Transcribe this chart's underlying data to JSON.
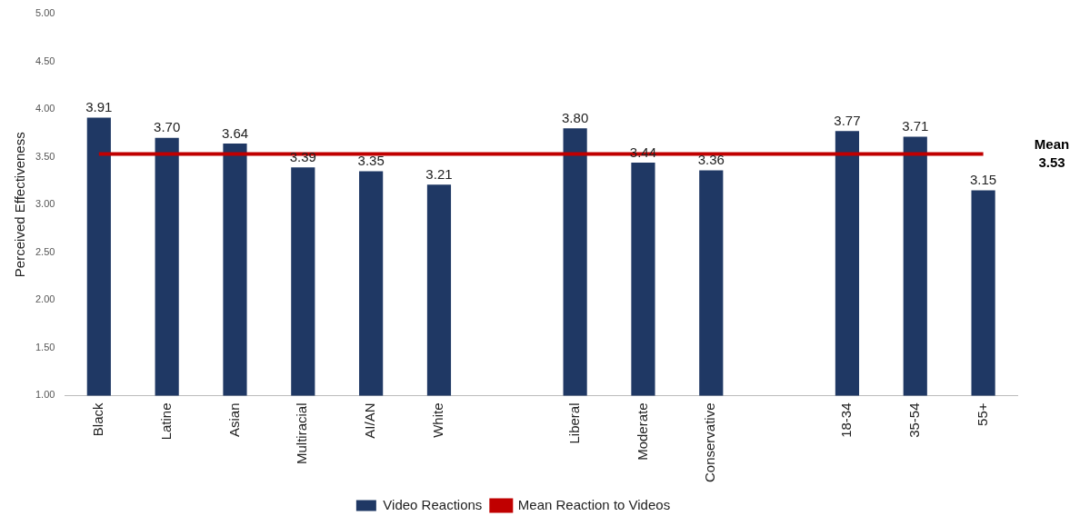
{
  "chart_data": {
    "type": "bar",
    "ylabel": "Perceived Effectiveness",
    "categories": [
      "Black",
      "Latine",
      "Asian",
      "Multiracial",
      "AI/AN",
      "White",
      null,
      "Liberal",
      "Moderate",
      "Conservative",
      null,
      "18-34",
      "35-54",
      "55+"
    ],
    "series": [
      {
        "name": "Video Reactions",
        "color": "#1f3864",
        "values": [
          3.91,
          3.7,
          3.64,
          3.39,
          3.35,
          3.21,
          null,
          3.8,
          3.44,
          3.36,
          null,
          3.77,
          3.71,
          3.15
        ],
        "value_labels": [
          "3.91",
          "3.70",
          "3.64",
          "3.39",
          "3.35",
          "3.21",
          null,
          "3.80",
          "3.44",
          "3.36",
          null,
          "3.77",
          "3.71",
          "3.15"
        ]
      },
      {
        "name": "Mean Reaction to Videos",
        "type": "line",
        "color": "#c00000",
        "values": [
          3.53,
          3.53,
          3.53,
          3.53,
          3.53,
          3.53,
          3.53,
          3.53,
          3.53,
          3.53,
          3.53,
          3.53,
          3.53,
          3.53
        ]
      }
    ],
    "ylim": [
      1,
      5
    ],
    "yticks": [
      {
        "value": 1,
        "label": "1.00"
      },
      {
        "value": 1.5,
        "label": "1.50"
      },
      {
        "value": 2,
        "label": "2.00"
      },
      {
        "value": 2.5,
        "label": "2.50"
      },
      {
        "value": 3,
        "label": "3.00"
      },
      {
        "value": 3.5,
        "label": "3.50"
      },
      {
        "value": 4,
        "label": "4.00"
      },
      {
        "value": 4.5,
        "label": "4.50"
      },
      {
        "value": 5,
        "label": "5.00"
      }
    ],
    "annotations": [
      "Mean 3.53"
    ],
    "grid": false,
    "legend": "bottom",
    "marker": "none"
  }
}
